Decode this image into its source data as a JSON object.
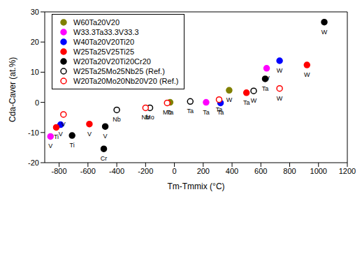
{
  "chart_data": {
    "type": "scatter",
    "x_label": "Tm-Tmmix (°C)",
    "y_label": "Cda-Caver (at.%)",
    "xlim": [
      -900,
      1200
    ],
    "xticks": [
      -800,
      -600,
      -400,
      -200,
      0,
      200,
      400,
      600,
      800,
      1000,
      1200
    ],
    "ylim": [
      -20,
      30
    ],
    "yticks": [
      -20,
      -10,
      0,
      10,
      20,
      30
    ],
    "grid": false,
    "legend": "upper left",
    "series": [
      {
        "name": "W60Ta20V20",
        "color": "#808000",
        "marker": "circle",
        "x": [
          -30,
          380
        ],
        "values": [
          0,
          4
        ],
        "labels": [
          "Ta",
          "W"
        ]
      },
      {
        "name": "W33.3Ta33.3V33.3",
        "color": "#ff00ff",
        "marker": "circle",
        "x": [
          -860,
          220,
          640
        ],
        "values": [
          -11.3,
          0,
          11.3
        ],
        "labels": [
          "V",
          "Ta",
          "W"
        ]
      },
      {
        "name": "W40Ta20V20Ti20",
        "color": "#0000ff",
        "marker": "circle",
        "x": [
          -790,
          320,
          730
        ],
        "values": [
          -7.4,
          -0.2,
          13.8
        ],
        "labels": [
          "V",
          "Ta",
          "W"
        ]
      },
      {
        "name": "W25Ta25V25Ti25",
        "color": "#ff0000",
        "marker": "circle",
        "x": [
          -820,
          -590,
          500,
          920
        ],
        "values": [
          -8.3,
          -7.2,
          3.2,
          12.4
        ],
        "labels": [
          "Ti",
          "V",
          "Ta",
          "W"
        ]
      },
      {
        "name": "W20Ta20V20Ti20Cr20",
        "color": "#000000",
        "marker": "circle",
        "x": [
          -710,
          -490,
          -480,
          630,
          1040
        ],
        "values": [
          -11,
          -15.4,
          -8,
          7.8,
          26.6
        ],
        "labels": [
          "Ti",
          "Cr",
          "V",
          "Ta",
          "W"
        ]
      },
      {
        "name": "W25Ta25Mo25Nb25 (Ref.)",
        "color": "#000000",
        "marker": "open_circle",
        "x": [
          -400,
          -170,
          110,
          550
        ],
        "values": [
          -2.5,
          -1.8,
          0.3,
          3.8
        ],
        "labels": [
          "Nb",
          "Mo",
          "Ta",
          "W"
        ]
      },
      {
        "name": "W20Ta20Mo20Nb20V20 (Ref.)",
        "color": "#ff0000",
        "marker": "open_circle",
        "x": [
          -770,
          -200,
          -50,
          310,
          730
        ],
        "values": [
          -4,
          -1.8,
          -0.2,
          0.9,
          4.6
        ],
        "labels": [
          "V",
          "Nb",
          "Mo",
          "Ta",
          "W"
        ]
      }
    ]
  }
}
